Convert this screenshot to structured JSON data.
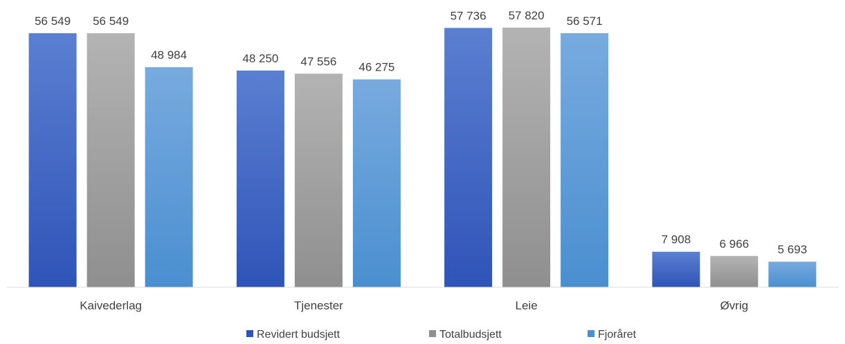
{
  "chart_data": {
    "type": "bar",
    "categories": [
      "Kaivederlag",
      "Tjenester",
      "Leie",
      "Øvrig"
    ],
    "series": [
      {
        "name": "Revidert budsjett",
        "values": [
          56549,
          48250,
          57736,
          7908
        ],
        "labels": [
          "56 549",
          "48 250",
          "57 736",
          "7 908"
        ]
      },
      {
        "name": "Totalbudsjett",
        "values": [
          56549,
          47556,
          57820,
          6966
        ],
        "labels": [
          "56 549",
          "47 556",
          "57 820",
          "6 966"
        ]
      },
      {
        "name": "Fjoråret",
        "values": [
          48984,
          46275,
          56571,
          5693
        ],
        "labels": [
          "48 984",
          "46 275",
          "56 571",
          "5 693"
        ]
      }
    ],
    "title": "",
    "xlabel": "",
    "ylabel": "",
    "ylim": [
      0,
      60000
    ],
    "grid": false,
    "legend_position": "bottom",
    "colors": {
      "Revidert budsjett": [
        "#5b7fd1",
        "#2f54b8"
      ],
      "Totalbudsjett": [
        "#b3b3b3",
        "#8f8f8f"
      ],
      "Fjoråret": [
        "#78aadf",
        "#4a8fd0"
      ]
    }
  }
}
